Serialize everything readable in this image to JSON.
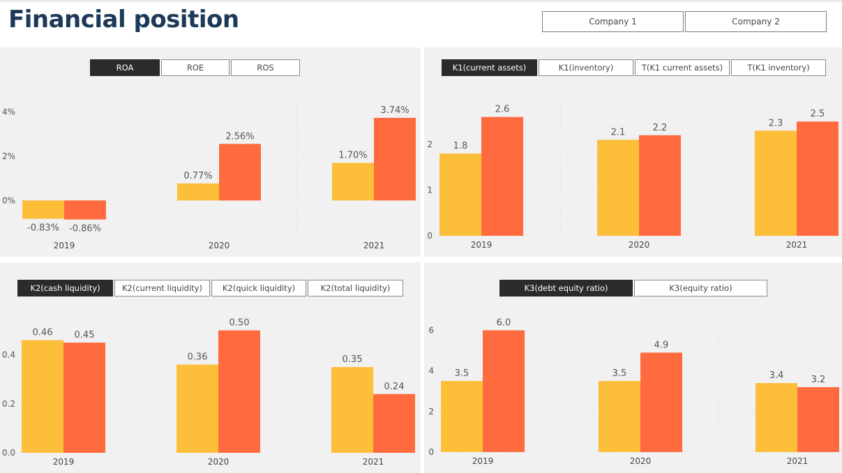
{
  "header": {
    "title": "Financial position",
    "company_buttons": [
      "Company 1",
      "Company 2"
    ]
  },
  "colors": {
    "series1": "#FDBE3A",
    "series2": "#FF6B3E",
    "active_tab": "#2b2b2b",
    "title": "#1c3a57"
  },
  "panels": [
    {
      "tabs": [
        {
          "label": "ROA"
        },
        {
          "label": "ROE"
        },
        {
          "label": "ROS"
        }
      ],
      "active_tab": 0
    },
    {
      "tabs": [
        {
          "label": "K1(current assets)"
        },
        {
          "label": "K1(inventory)"
        },
        {
          "label": "T(K1 current assets)"
        },
        {
          "label": "T(K1 inventory)"
        }
      ],
      "active_tab": 0
    },
    {
      "tabs": [
        {
          "label": "K2(cash liquidity)"
        },
        {
          "label": "K2(current liquidity)"
        },
        {
          "label": "K2(quick liquidity)"
        },
        {
          "label": "K2(total liquidity)"
        }
      ],
      "active_tab": 0
    },
    {
      "tabs": [
        {
          "label": "K3(debt equity ratio)"
        },
        {
          "label": "K3(equity ratio)"
        }
      ],
      "active_tab": 0
    }
  ],
  "chart_data": [
    {
      "type": "bar",
      "categories": [
        "2019",
        "2020",
        "2021"
      ],
      "series": [
        {
          "values": [
            -0.83,
            0.77,
            1.7
          ],
          "labels": [
            "-0.83%",
            "0.77%",
            "1.70%"
          ]
        },
        {
          "values": [
            -0.86,
            2.56,
            3.74
          ],
          "labels": [
            "-0.86%",
            "2.56%",
            "3.74%"
          ]
        }
      ],
      "yticks": [
        0,
        2,
        4
      ],
      "ytick_labels": [
        "0%",
        "2%",
        "4%"
      ],
      "ylim": [
        -1.6,
        4.4
      ],
      "grid": true
    },
    {
      "type": "bar",
      "categories": [
        "2019",
        "2020",
        "2021"
      ],
      "series": [
        {
          "values": [
            1.8,
            2.1,
            2.3
          ],
          "labels": [
            "1.8",
            "2.1",
            "2.3"
          ]
        },
        {
          "values": [
            2.6,
            2.2,
            2.5
          ],
          "labels": [
            "2.6",
            "2.2",
            "2.5"
          ]
        }
      ],
      "yticks": [
        0,
        1,
        2
      ],
      "ytick_labels": [
        "0",
        "1",
        "2"
      ],
      "ylim": [
        0,
        2.9
      ],
      "grid": true
    },
    {
      "type": "bar",
      "categories": [
        "2019",
        "2020",
        "2021"
      ],
      "series": [
        {
          "values": [
            0.46,
            0.36,
            0.35
          ],
          "labels": [
            "0.46",
            "0.36",
            "0.35"
          ]
        },
        {
          "values": [
            0.45,
            0.5,
            0.24
          ],
          "labels": [
            "0.45",
            "0.50",
            "0.24"
          ]
        }
      ],
      "yticks": [
        0,
        0.2,
        0.4
      ],
      "ytick_labels": [
        "0.0",
        "0.2",
        "0.4"
      ],
      "ylim": [
        0,
        0.55
      ],
      "grid": true
    },
    {
      "type": "bar",
      "categories": [
        "2019",
        "2020",
        "2021"
      ],
      "series": [
        {
          "values": [
            3.5,
            3.5,
            3.4
          ],
          "labels": [
            "3.5",
            "3.5",
            "3.4"
          ]
        },
        {
          "values": [
            6.0,
            4.9,
            3.2
          ],
          "labels": [
            "6.0",
            "4.9",
            "3.2"
          ]
        }
      ],
      "yticks": [
        0,
        2,
        4,
        6
      ],
      "ytick_labels": [
        "0",
        "2",
        "4",
        "6"
      ],
      "ylim": [
        0,
        6.6
      ],
      "grid": true
    }
  ]
}
